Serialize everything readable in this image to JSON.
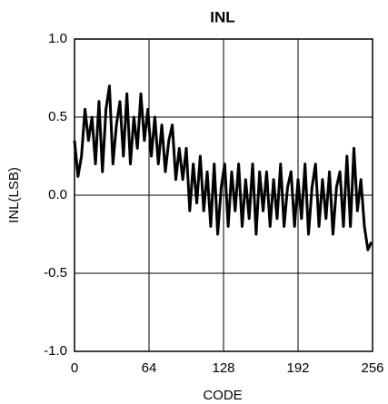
{
  "chart_data": {
    "type": "line",
    "title": "INL",
    "xlabel": "CODE",
    "ylabel": "INL(LSB)",
    "x": [
      0,
      3,
      6,
      9,
      12,
      15,
      18,
      21,
      24,
      27,
      30,
      33,
      36,
      39,
      42,
      45,
      48,
      51,
      54,
      57,
      60,
      63,
      66,
      69,
      72,
      75,
      78,
      81,
      84,
      87,
      90,
      93,
      96,
      99,
      102,
      105,
      108,
      111,
      114,
      117,
      120,
      123,
      126,
      129,
      132,
      135,
      138,
      141,
      144,
      147,
      150,
      153,
      156,
      159,
      162,
      165,
      168,
      171,
      174,
      177,
      180,
      183,
      186,
      189,
      192,
      195,
      198,
      201,
      204,
      207,
      210,
      213,
      216,
      219,
      222,
      225,
      228,
      231,
      234,
      237,
      240,
      243,
      246,
      249,
      252,
      255
    ],
    "series": [
      {
        "name": "INL",
        "color": "#000000",
        "values": [
          0.35,
          0.12,
          0.25,
          0.55,
          0.35,
          0.5,
          0.2,
          0.6,
          0.15,
          0.55,
          0.7,
          0.2,
          0.45,
          0.6,
          0.25,
          0.65,
          0.2,
          0.5,
          0.3,
          0.65,
          0.35,
          0.55,
          0.25,
          0.5,
          0.2,
          0.45,
          0.15,
          0.35,
          0.45,
          0.1,
          0.3,
          0.1,
          0.3,
          -0.1,
          0.2,
          -0.05,
          0.25,
          -0.1,
          0.15,
          -0.2,
          0.2,
          -0.25,
          0.05,
          0.2,
          -0.2,
          0.15,
          -0.1,
          0.2,
          -0.2,
          0.1,
          -0.15,
          0.2,
          -0.25,
          0.15,
          -0.1,
          0.15,
          -0.2,
          0.1,
          -0.15,
          0.2,
          -0.2,
          0.05,
          0.15,
          -0.2,
          0.1,
          -0.15,
          0.2,
          -0.25,
          0.05,
          0.2,
          -0.2,
          0.1,
          -0.15,
          0.15,
          -0.25,
          0.05,
          0.15,
          -0.2,
          0.25,
          -0.2,
          0.3,
          -0.1,
          0.1,
          -0.2,
          -0.35,
          -0.3
        ]
      }
    ],
    "xlim": [
      0,
      256
    ],
    "xticks": [
      0,
      64,
      128,
      192,
      256
    ],
    "ylim": [
      -1,
      1
    ],
    "yticks": [
      {
        "value": 1,
        "label": "1.0"
      },
      {
        "value": 0.5,
        "label": "0.5"
      },
      {
        "value": 0,
        "label": "0.0"
      },
      {
        "value": -0.5,
        "label": "-0.5"
      },
      {
        "value": -1,
        "label": "-1.0"
      }
    ],
    "grid": true
  }
}
